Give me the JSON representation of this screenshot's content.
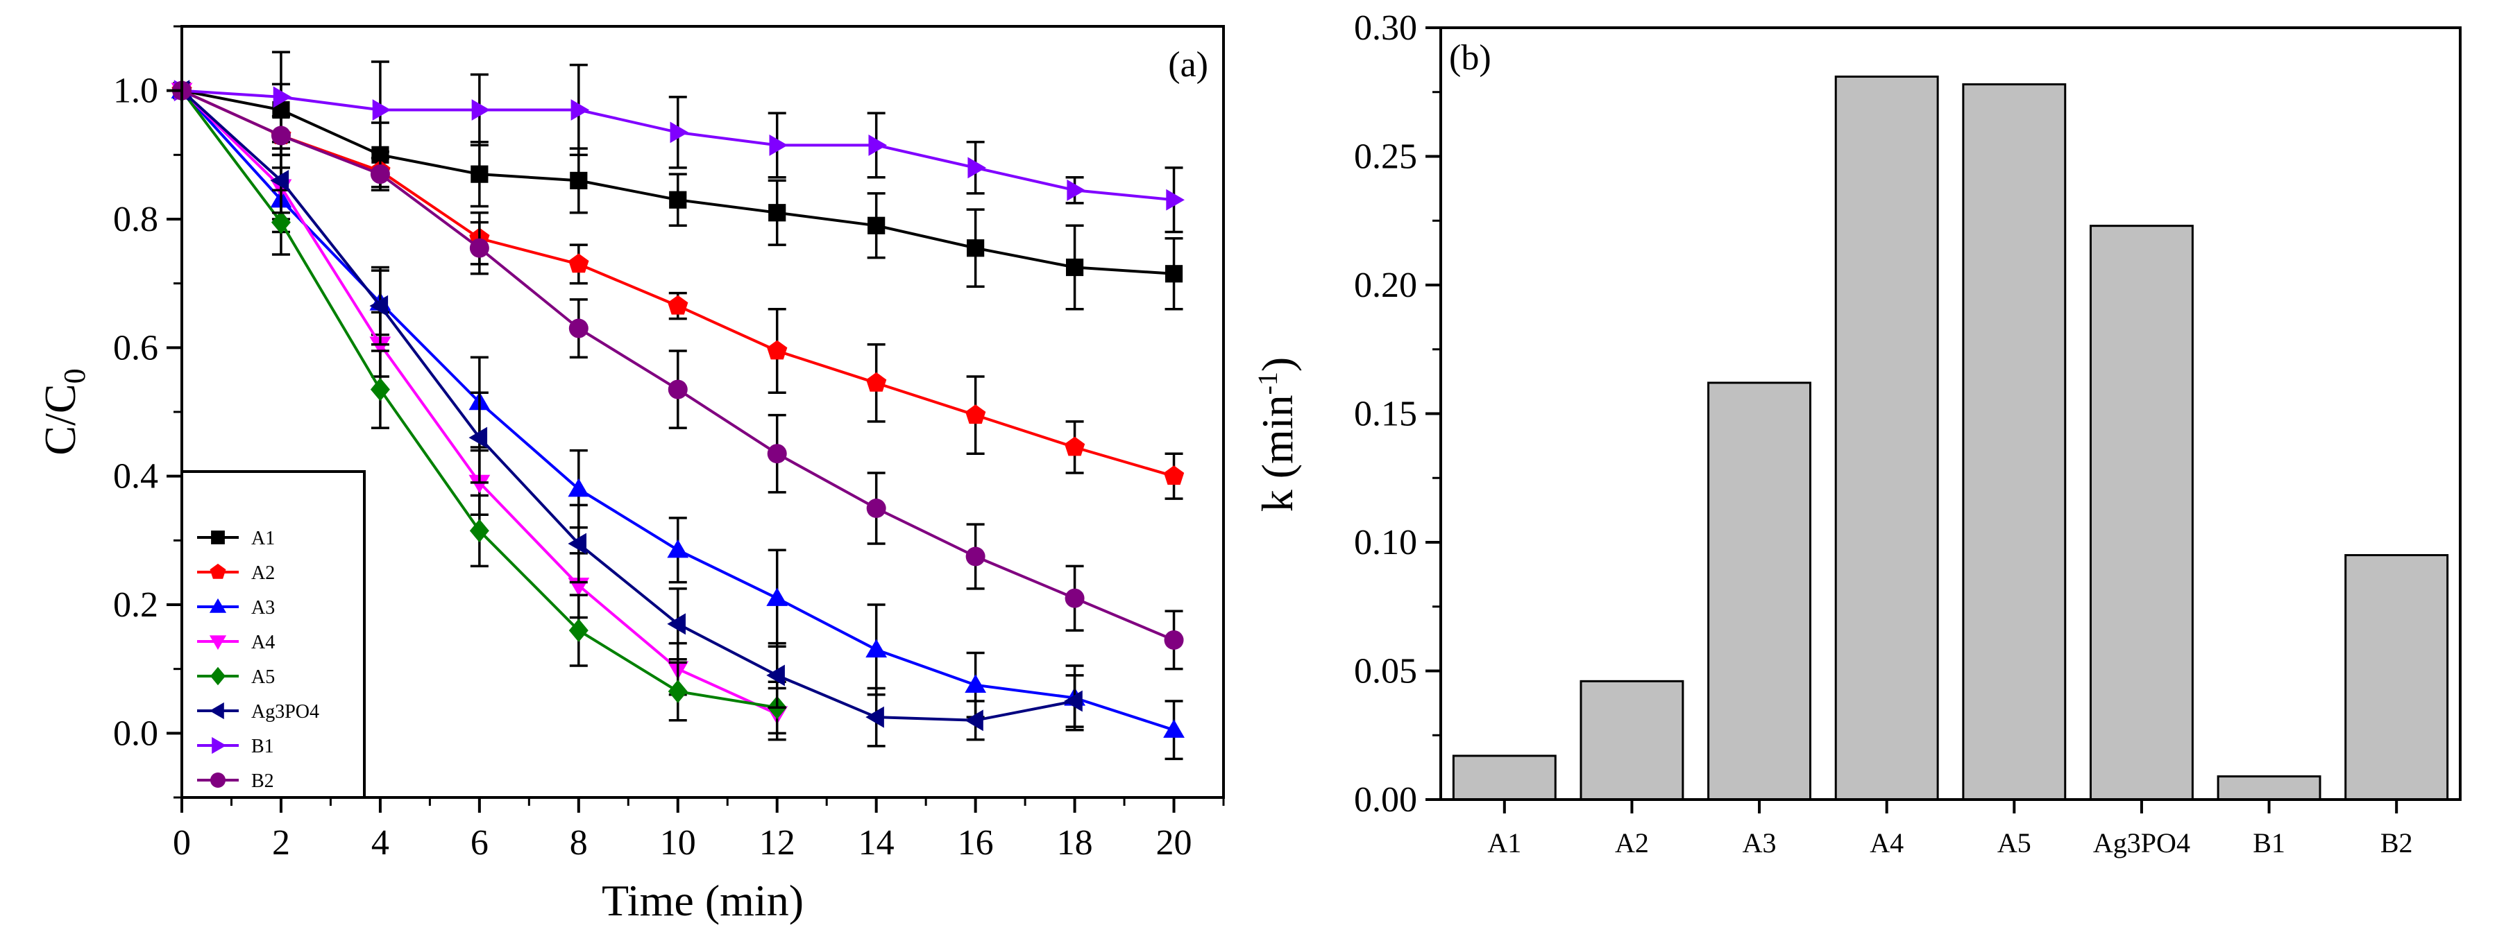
{
  "chart_data": [
    {
      "type": "line",
      "panel_label": "(a)",
      "xlabel": "Time (min)",
      "ylabel": "C/C",
      "ylabel_subscript": "0",
      "xlim": [
        0,
        21
      ],
      "ylim": [
        -0.1,
        1.1
      ],
      "xticks": [
        "0",
        "2",
        "4",
        "6",
        "8",
        "10",
        "12",
        "14",
        "16",
        "18",
        "20"
      ],
      "yticks": [
        "0.0",
        "0.2",
        "0.4",
        "0.6",
        "0.8",
        "1.0"
      ],
      "legend_position": "bottom-left",
      "series": [
        {
          "name": "A1",
          "color": "#000000",
          "marker": "square",
          "x": [
            0,
            2,
            4,
            6,
            8,
            10,
            12,
            14,
            16,
            18,
            20
          ],
          "y": [
            1.0,
            0.97,
            0.9,
            0.87,
            0.86,
            0.83,
            0.81,
            0.79,
            0.755,
            0.725,
            0.715
          ],
          "err": [
            0,
            0.04,
            0.05,
            0.05,
            0.05,
            0.04,
            0.05,
            0.05,
            0.06,
            0.065,
            0.055
          ]
        },
        {
          "name": "A2",
          "color": "#ff0000",
          "marker": "pentagon",
          "x": [
            0,
            2,
            4,
            6,
            8,
            10,
            12,
            14,
            16,
            18,
            20
          ],
          "y": [
            1.0,
            0.93,
            0.875,
            0.77,
            0.73,
            0.665,
            0.595,
            0.545,
            0.495,
            0.445,
            0.4
          ],
          "err": [
            0,
            0.03,
            0.03,
            0.04,
            0.03,
            0.02,
            0.065,
            0.06,
            0.06,
            0.04,
            0.035
          ]
        },
        {
          "name": "A3",
          "color": "#0000ff",
          "marker": "triangle-up",
          "x": [
            0,
            2,
            4,
            6,
            8,
            10,
            12,
            14,
            16,
            18,
            20
          ],
          "y": [
            1.0,
            0.83,
            0.67,
            0.515,
            0.38,
            0.285,
            0.21,
            0.13,
            0.075,
            0.055,
            0.005
          ],
          "err": [
            0,
            0.05,
            0.05,
            0.07,
            0.06,
            0.05,
            0.075,
            0.07,
            0.05,
            0.05,
            0.045
          ]
        },
        {
          "name": "A4",
          "color": "#ff00ff",
          "marker": "triangle-down",
          "x": [
            0,
            2,
            4,
            6,
            8,
            10,
            12
          ],
          "y": [
            1.0,
            0.85,
            0.605,
            0.39,
            0.23,
            0.1,
            0.03
          ],
          "err": [
            0,
            0.05,
            0.05,
            0.05,
            0.05,
            0.04,
            0.04
          ]
        },
        {
          "name": "A5",
          "color": "#008000",
          "marker": "diamond",
          "x": [
            0,
            2,
            4,
            6,
            8,
            10,
            12
          ],
          "y": [
            1.0,
            0.795,
            0.535,
            0.315,
            0.16,
            0.065,
            0.04
          ],
          "err": [
            0,
            0.05,
            0.06,
            0.055,
            0.055,
            0.045,
            0.04
          ]
        },
        {
          "name": "Ag3PO4",
          "color": "#000080",
          "marker": "triangle-left",
          "x": [
            0,
            2,
            4,
            6,
            8,
            10,
            12,
            14,
            16,
            18
          ],
          "y": [
            1.0,
            0.86,
            0.665,
            0.46,
            0.295,
            0.17,
            0.09,
            0.025,
            0.02,
            0.05
          ],
          "err": [
            0,
            0.05,
            0.06,
            0.07,
            0.06,
            0.055,
            0.05,
            0.045,
            0.03,
            0.04
          ]
        },
        {
          "name": "B1",
          "color": "#8000ff",
          "marker": "triangle-right",
          "x": [
            0,
            2,
            4,
            6,
            8,
            10,
            12,
            14,
            16,
            18,
            20
          ],
          "y": [
            1.0,
            0.99,
            0.97,
            0.97,
            0.97,
            0.935,
            0.915,
            0.915,
            0.88,
            0.845,
            0.83
          ],
          "err": [
            0,
            0.07,
            0.075,
            0.055,
            0.07,
            0.055,
            0.05,
            0.05,
            0.04,
            0.02,
            0.05
          ]
        },
        {
          "name": "B2",
          "color": "#800080",
          "marker": "circle",
          "x": [
            0,
            2,
            4,
            6,
            8,
            10,
            12,
            14,
            16,
            18,
            20
          ],
          "y": [
            1.0,
            0.93,
            0.87,
            0.755,
            0.63,
            0.535,
            0.435,
            0.35,
            0.275,
            0.21,
            0.145
          ],
          "err": [
            0,
            0.03,
            0.025,
            0.04,
            0.045,
            0.06,
            0.06,
            0.055,
            0.05,
            0.05,
            0.045
          ]
        }
      ]
    },
    {
      "type": "bar",
      "panel_label": "(b)",
      "xlabel": "",
      "ylabel": "k (min",
      "ylabel_superscript": "-1",
      "ylabel_suffix": ")",
      "ylim": [
        0,
        0.3
      ],
      "yticks": [
        "0.00",
        "0.05",
        "0.10",
        "0.15",
        "0.20",
        "0.25",
        "0.30"
      ],
      "bar_color": "#c0c0c0",
      "categories": [
        "A1",
        "A2",
        "A3",
        "A4",
        "A5",
        "Ag3PO4",
        "B1",
        "B2"
      ],
      "values": [
        0.017,
        0.046,
        0.162,
        0.281,
        0.278,
        0.223,
        0.009,
        0.095
      ]
    }
  ]
}
